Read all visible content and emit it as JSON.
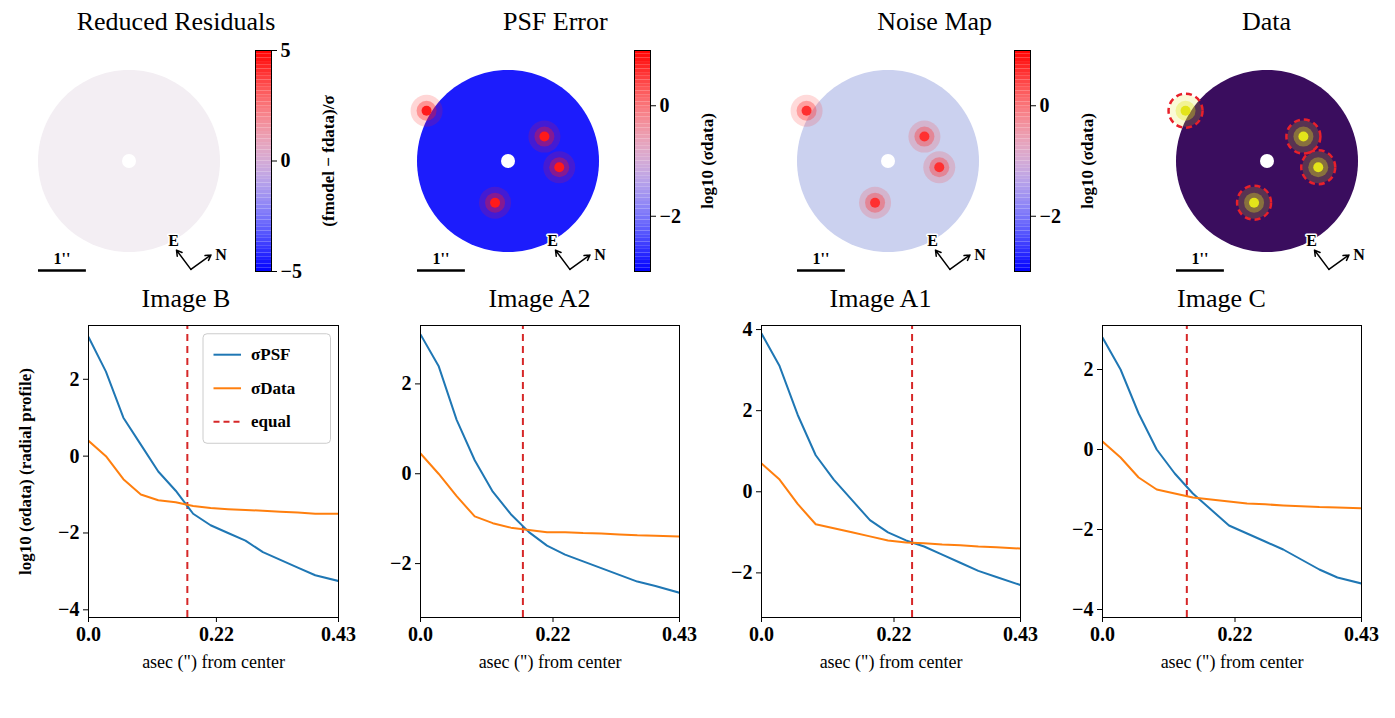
{
  "chart_data": [
    {
      "type": "image",
      "title": "Reduced Residuals",
      "fov_radius": 1.9,
      "color": "#f3eef3",
      "scale_bar": {
        "length": 1,
        "label": "1''"
      },
      "compass": [
        "E",
        "N"
      ],
      "colorbar": {
        "label": "(fmodel − fdata)/σ",
        "lim": [
          -5,
          5
        ],
        "ticks": [
          -5,
          0,
          5
        ],
        "colors": [
          "#0000ff",
          "#ffffff",
          "#ff0000"
        ]
      }
    },
    {
      "type": "image",
      "title": "PSF Error",
      "fov_radius": 1.9,
      "color": "#1c1cfc",
      "sources": {
        "x": [
          -1.7,
          0.76,
          1.07,
          -0.27
        ],
        "y": [
          1.05,
          0.51,
          -0.13,
          -0.87
        ],
        "color": "#ff1a1a"
      },
      "scale_bar": {
        "length": 1,
        "label": "1''"
      },
      "compass": [
        "E",
        "N"
      ],
      "colorbar": {
        "label": "log10 (σdata)",
        "lim": [
          -3,
          1
        ],
        "ticks": [
          -2,
          0
        ],
        "colors": [
          "#0000ff",
          "#ffffff",
          "#ff0000"
        ]
      }
    },
    {
      "type": "image",
      "title": "Noise Map",
      "fov_radius": 1.9,
      "color": "#cbd1ef",
      "sources": {
        "x": [
          -1.7,
          0.76,
          1.07,
          -0.27
        ],
        "y": [
          1.05,
          0.51,
          -0.13,
          -0.87
        ],
        "color": "#ff3030"
      },
      "scale_bar": {
        "length": 1,
        "label": "1''"
      },
      "compass": [
        "E",
        "N"
      ],
      "colorbar": {
        "label": "log10 (σdata)",
        "lim": [
          -3,
          1
        ],
        "ticks": [
          -2,
          0
        ],
        "colors": [
          "#0000ff",
          "#ffffff",
          "#ff0000"
        ]
      }
    },
    {
      "type": "image",
      "title": "Data",
      "fov_radius": 1.9,
      "color": "#3a0d5e",
      "sources": {
        "x": [
          -1.7,
          0.76,
          1.07,
          -0.27
        ],
        "y": [
          1.05,
          0.51,
          -0.13,
          -0.87
        ],
        "color": "#e3e41a",
        "marker": "dashed_circle"
      },
      "scale_bar": {
        "length": 1,
        "label": "1''"
      },
      "compass": [
        "E",
        "N"
      ]
    },
    {
      "type": "line",
      "title": "Image B",
      "ylabel": "log10 (σdata) (radial profile)",
      "xlabel": "asec (\") from center",
      "x": [
        0,
        0.03,
        0.06,
        0.09,
        0.12,
        0.15,
        0.18,
        0.21,
        0.24,
        0.27,
        0.3,
        0.33,
        0.36,
        0.39,
        0.43
      ],
      "xlim": [
        0,
        0.43
      ],
      "xticks": [
        {
          "value": 0,
          "label": "0.0"
        },
        0.22,
        0.43
      ],
      "ylim": [
        -4.2,
        3.4
      ],
      "yticks": [
        -4,
        -2,
        0,
        2
      ],
      "legend": "upper right",
      "series": [
        {
          "name": "σPSF",
          "color": "#1f77b4",
          "values": [
            3.1,
            2.2,
            1.0,
            0.3,
            -0.4,
            -0.9,
            -1.5,
            -1.8,
            -2.0,
            -2.2,
            -2.5,
            -2.7,
            -2.9,
            -3.1,
            -3.25
          ]
        },
        {
          "name": "σData",
          "color": "#ff7f0e",
          "values": [
            0.4,
            0.0,
            -0.6,
            -1.0,
            -1.15,
            -1.2,
            -1.3,
            -1.35,
            -1.38,
            -1.4,
            -1.42,
            -1.45,
            -1.47,
            -1.5,
            -1.5
          ]
        }
      ],
      "rules": [
        {
          "name": "equal",
          "color": "#d62728",
          "line_style": "dashed",
          "x": 0.17
        }
      ]
    },
    {
      "type": "line",
      "title": "Image A2",
      "xlabel": "asec (\") from center",
      "x": [
        0,
        0.03,
        0.06,
        0.09,
        0.12,
        0.15,
        0.18,
        0.21,
        0.24,
        0.27,
        0.3,
        0.33,
        0.36,
        0.39,
        0.43
      ],
      "xlim": [
        0,
        0.43
      ],
      "xticks": [
        {
          "value": 0,
          "label": "0.0"
        },
        0.22,
        0.43
      ],
      "ylim": [
        -3.2,
        3.3
      ],
      "yticks": [
        -2,
        0,
        2
      ],
      "series": [
        {
          "name": "σPSF",
          "color": "#1f77b4",
          "values": [
            3.1,
            2.4,
            1.2,
            0.3,
            -0.4,
            -0.9,
            -1.3,
            -1.6,
            -1.8,
            -1.95,
            -2.1,
            -2.25,
            -2.4,
            -2.5,
            -2.65
          ]
        },
        {
          "name": "σData",
          "color": "#ff7f0e",
          "values": [
            0.45,
            0.0,
            -0.5,
            -0.95,
            -1.1,
            -1.2,
            -1.25,
            -1.3,
            -1.3,
            -1.32,
            -1.33,
            -1.35,
            -1.37,
            -1.38,
            -1.4
          ]
        }
      ],
      "rules": [
        {
          "name": "equal",
          "color": "#d62728",
          "line_style": "dashed",
          "x": 0.17
        }
      ]
    },
    {
      "type": "line",
      "title": "Image A1",
      "xlabel": "asec (\") from center",
      "x": [
        0,
        0.03,
        0.06,
        0.09,
        0.12,
        0.15,
        0.18,
        0.21,
        0.24,
        0.27,
        0.3,
        0.33,
        0.36,
        0.39,
        0.43
      ],
      "xlim": [
        0,
        0.43
      ],
      "xticks": [
        {
          "value": 0,
          "label": "0.0"
        },
        0.22,
        0.43
      ],
      "ylim": [
        -3.1,
        4.1
      ],
      "yticks": [
        -2,
        0,
        2,
        4
      ],
      "series": [
        {
          "name": "σPSF",
          "color": "#1f77b4",
          "values": [
            3.9,
            3.1,
            1.9,
            0.9,
            0.3,
            -0.2,
            -0.7,
            -1.0,
            -1.2,
            -1.35,
            -1.55,
            -1.75,
            -1.95,
            -2.1,
            -2.3
          ]
        },
        {
          "name": "σData",
          "color": "#ff7f0e",
          "values": [
            0.7,
            0.3,
            -0.3,
            -0.8,
            -0.9,
            -1.0,
            -1.1,
            -1.2,
            -1.25,
            -1.27,
            -1.3,
            -1.32,
            -1.35,
            -1.37,
            -1.4
          ]
        }
      ],
      "rules": [
        {
          "name": "equal",
          "color": "#d62728",
          "line_style": "dashed",
          "x": 0.25
        }
      ]
    },
    {
      "type": "line",
      "title": "Image C",
      "xlabel": "asec (\") from center",
      "x": [
        0,
        0.03,
        0.06,
        0.09,
        0.12,
        0.15,
        0.18,
        0.21,
        0.24,
        0.27,
        0.3,
        0.33,
        0.36,
        0.39,
        0.43
      ],
      "xlim": [
        0,
        0.43
      ],
      "xticks": [
        {
          "value": 0,
          "label": "0.0"
        },
        0.22,
        0.43
      ],
      "ylim": [
        -4.2,
        3.1
      ],
      "yticks": [
        -4,
        -2,
        0,
        2
      ],
      "series": [
        {
          "name": "σPSF",
          "color": "#1f77b4",
          "values": [
            2.8,
            2.0,
            0.9,
            0.0,
            -0.6,
            -1.1,
            -1.5,
            -1.9,
            -2.1,
            -2.3,
            -2.5,
            -2.75,
            -3.0,
            -3.2,
            -3.35
          ]
        },
        {
          "name": "σData",
          "color": "#ff7f0e",
          "values": [
            0.2,
            -0.2,
            -0.7,
            -1.0,
            -1.1,
            -1.2,
            -1.25,
            -1.3,
            -1.35,
            -1.37,
            -1.4,
            -1.42,
            -1.44,
            -1.45,
            -1.47
          ]
        }
      ],
      "rules": [
        {
          "name": "equal",
          "color": "#d62728",
          "line_style": "dashed",
          "x": 0.14
        }
      ]
    }
  ]
}
